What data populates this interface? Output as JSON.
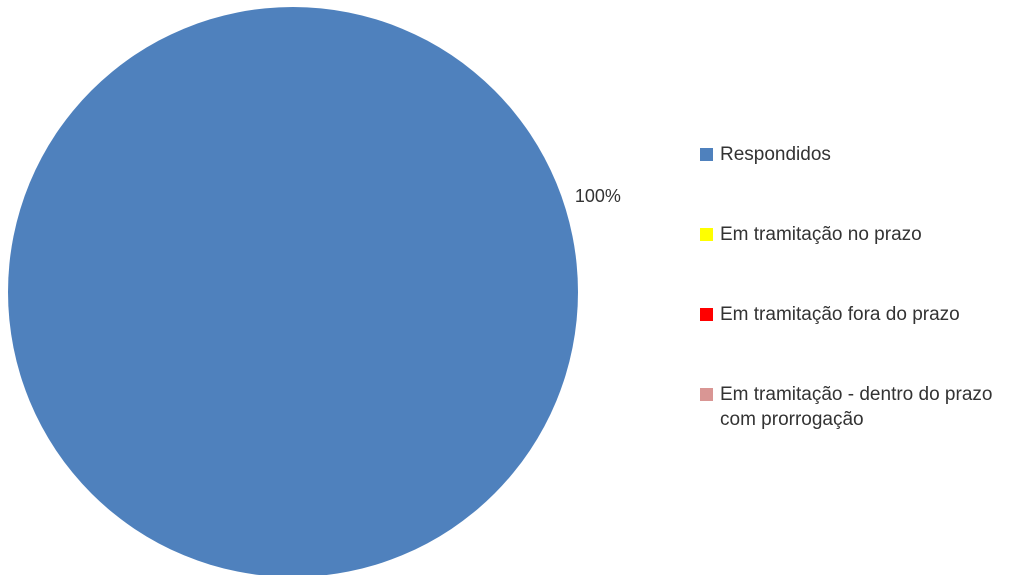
{
  "chart_data": {
    "type": "pie",
    "categories": [
      "Respondidos",
      "Em tramitação no prazo",
      "Em tramitação fora do prazo",
      "Em tramitação - dentro do prazo com prorrogação"
    ],
    "values": [
      100,
      0,
      0,
      0
    ],
    "value_labels": [
      "100%",
      null,
      null,
      null
    ],
    "colors": [
      "#4F81BD",
      "#FFFF00",
      "#FF0000",
      "#D99694"
    ],
    "legend": "right"
  }
}
